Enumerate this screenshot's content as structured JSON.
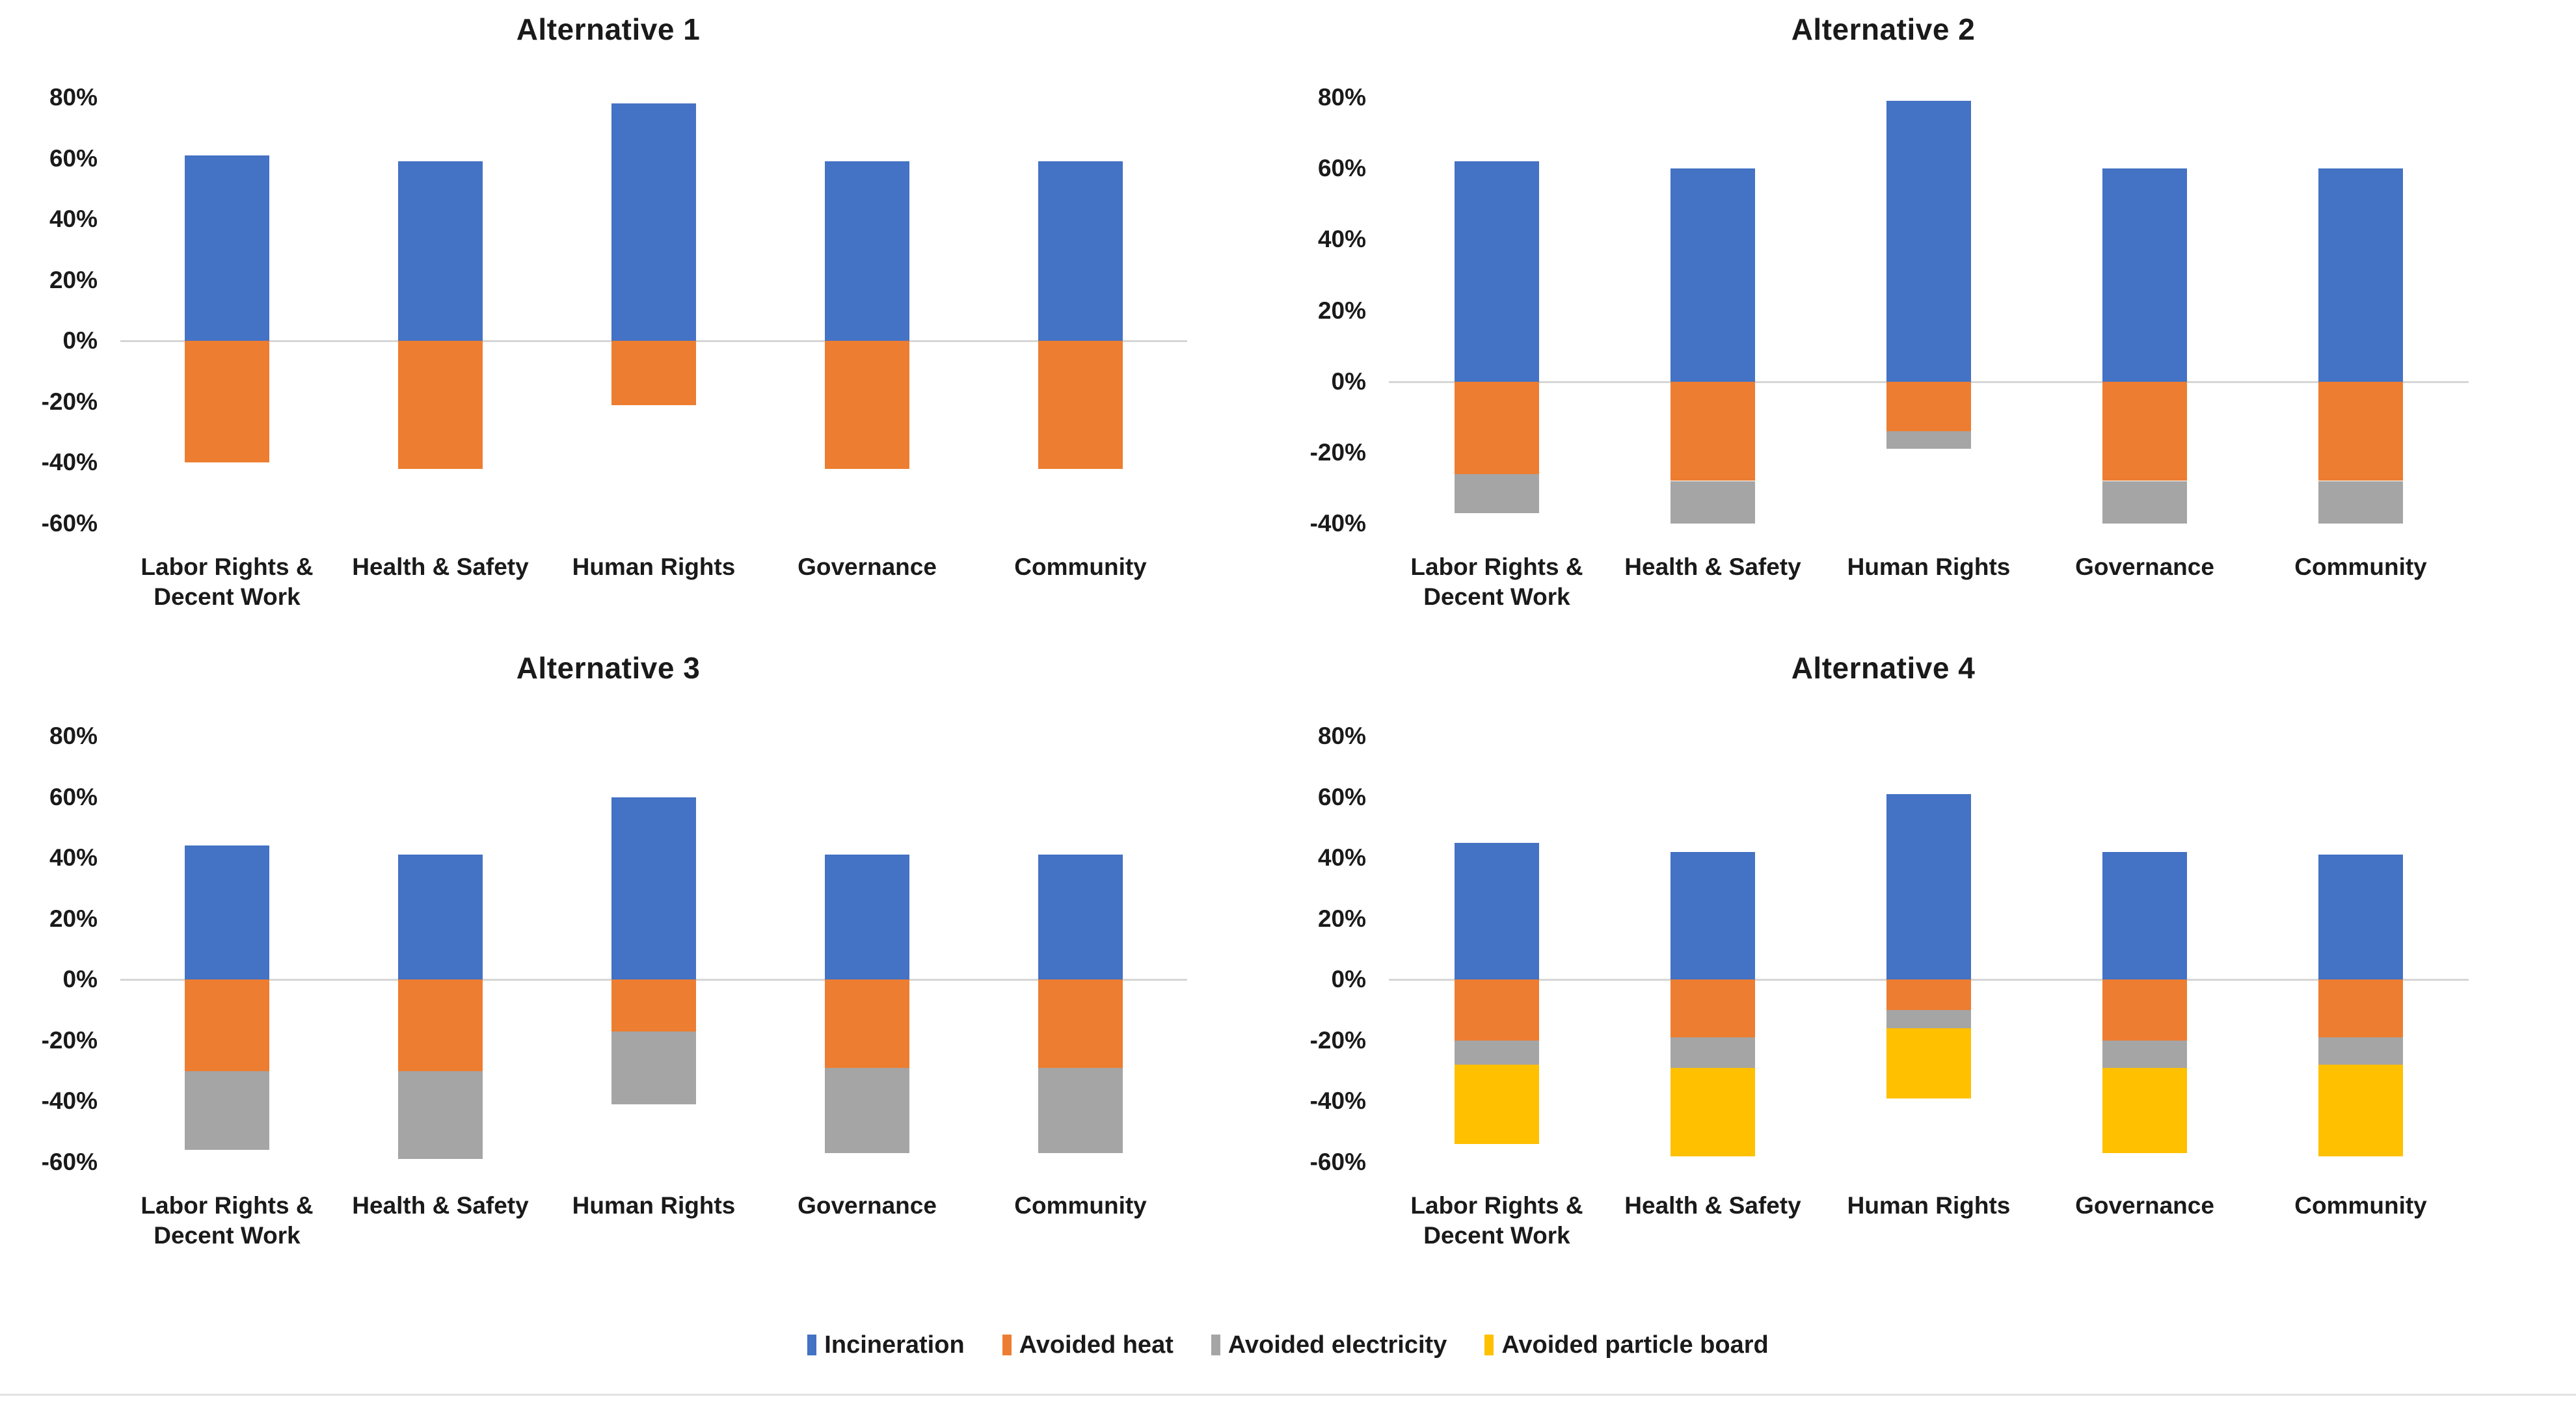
{
  "colors": {
    "incineration": "#4472C4",
    "avoided_heat": "#ED7D31",
    "avoided_electricity": "#A5A5A5",
    "avoided_particle_board": "#FFC000",
    "zero_line": "#D6D6D6",
    "text": "#1A1A1A"
  },
  "categories": [
    "Labor Rights & Decent Work",
    "Health & Safety",
    "Human Rights",
    "Governance",
    "Community"
  ],
  "legend": {
    "position": "bottom-center",
    "items": [
      {
        "label": "Incineration",
        "color_key": "incineration"
      },
      {
        "label": "Avoided heat",
        "color_key": "avoided_heat"
      },
      {
        "label": "Avoided electricity",
        "color_key": "avoided_electricity"
      },
      {
        "label": "Avoided particle board",
        "color_key": "avoided_particle_board"
      }
    ]
  },
  "chart_data": [
    {
      "type": "bar",
      "stacked": true,
      "title": "Alternative 1",
      "categories": [
        "Labor Rights & Decent Work",
        "Health & Safety",
        "Human Rights",
        "Governance",
        "Community"
      ],
      "y_ticks": [
        "80%",
        "60%",
        "40%",
        "20%",
        "0%",
        "-20%",
        "-40%",
        "-60%"
      ],
      "ylim": [
        -60,
        80
      ],
      "grid": "zero-line-only",
      "series": [
        {
          "name": "Incineration",
          "color_key": "incineration",
          "values": [
            61,
            59,
            78,
            59,
            59
          ]
        },
        {
          "name": "Avoided heat",
          "color_key": "avoided_heat",
          "values": [
            -40,
            -42,
            -21,
            -42,
            -42
          ]
        }
      ]
    },
    {
      "type": "bar",
      "stacked": true,
      "title": "Alternative 2",
      "categories": [
        "Labor Rights & Decent Work",
        "Health & Safety",
        "Human Rights",
        "Governance",
        "Community"
      ],
      "y_ticks": [
        "80%",
        "60%",
        "40%",
        "20%",
        "0%",
        "-20%",
        "-40%"
      ],
      "ylim": [
        -40,
        80
      ],
      "grid": "zero-line-only",
      "series": [
        {
          "name": "Incineration",
          "color_key": "incineration",
          "values": [
            62,
            60,
            79,
            60,
            60
          ]
        },
        {
          "name": "Avoided heat",
          "color_key": "avoided_heat",
          "values": [
            -26,
            -28,
            -14,
            -28,
            -28
          ]
        },
        {
          "name": "Avoided electricity",
          "color_key": "avoided_electricity",
          "values": [
            -11,
            -12,
            -5,
            -12,
            -12
          ]
        }
      ]
    },
    {
      "type": "bar",
      "stacked": true,
      "title": "Alternative 3",
      "categories": [
        "Labor Rights & Decent Work",
        "Health & Safety",
        "Human Rights",
        "Governance",
        "Community"
      ],
      "y_ticks": [
        "80%",
        "60%",
        "40%",
        "20%",
        "0%",
        "-20%",
        "-40%",
        "-60%"
      ],
      "ylim": [
        -60,
        80
      ],
      "grid": "zero-line-only",
      "series": [
        {
          "name": "Incineration",
          "color_key": "incineration",
          "values": [
            44,
            41,
            60,
            41,
            41
          ]
        },
        {
          "name": "Avoided heat",
          "color_key": "avoided_heat",
          "values": [
            -30,
            -30,
            -17,
            -29,
            -29
          ]
        },
        {
          "name": "Avoided electricity",
          "color_key": "avoided_electricity",
          "values": [
            -26,
            -29,
            -24,
            -28,
            -28
          ]
        }
      ]
    },
    {
      "type": "bar",
      "stacked": true,
      "title": "Alternative 4",
      "categories": [
        "Labor Rights & Decent Work",
        "Health & Safety",
        "Human Rights",
        "Governance",
        "Community"
      ],
      "y_ticks": [
        "80%",
        "60%",
        "40%",
        "20%",
        "0%",
        "-20%",
        "-40%",
        "-60%"
      ],
      "ylim": [
        -60,
        80
      ],
      "grid": "zero-line-only",
      "series": [
        {
          "name": "Incineration",
          "color_key": "incineration",
          "values": [
            45,
            42,
            61,
            42,
            41
          ]
        },
        {
          "name": "Avoided heat",
          "color_key": "avoided_heat",
          "values": [
            -20,
            -19,
            -10,
            -20,
            -19
          ]
        },
        {
          "name": "Avoided electricity",
          "color_key": "avoided_electricity",
          "values": [
            -8,
            -10,
            -6,
            -9,
            -9
          ]
        },
        {
          "name": "Avoided particle board",
          "color_key": "avoided_particle_board",
          "values": [
            -26,
            -29,
            -23,
            -28,
            -30
          ]
        }
      ]
    }
  ]
}
